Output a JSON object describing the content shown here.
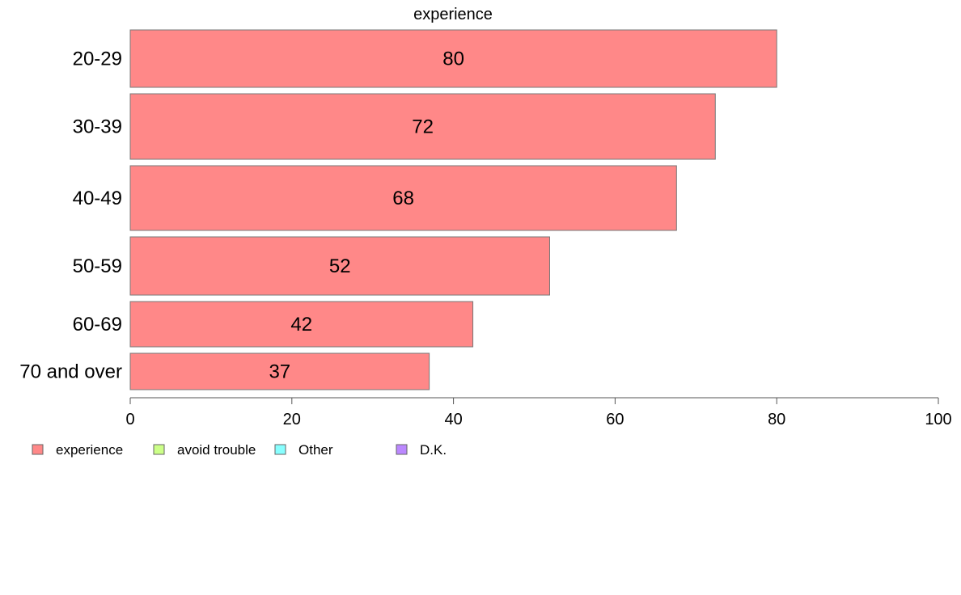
{
  "chart_data": {
    "type": "bar",
    "orientation": "horizontal",
    "title": "experience",
    "xlabel": "",
    "ylabel": "",
    "xlim": [
      0,
      100
    ],
    "x_ticks": [
      "0",
      "20",
      "40",
      "60",
      "80",
      "100"
    ],
    "categories": [
      "20-29",
      "30-39",
      "40-49",
      "50-59",
      "60-69",
      "70 and over"
    ],
    "series": [
      {
        "name": "experience",
        "color": "#ff8888",
        "values": [
          80,
          72.4,
          67.6,
          51.9,
          42.4,
          37
        ]
      }
    ],
    "data_labels": [
      "80",
      "72",
      "68",
      "52",
      "42",
      "37"
    ],
    "grid": false,
    "legend": {
      "placement": "bottom-left",
      "entries": [
        {
          "label": "experience",
          "color": "#ff8888"
        },
        {
          "label": "avoid trouble",
          "color": "#ccff88"
        },
        {
          "label": "Other",
          "color": "#88ffff"
        },
        {
          "label": "D.K.",
          "color": "#bb88ff"
        }
      ]
    }
  }
}
